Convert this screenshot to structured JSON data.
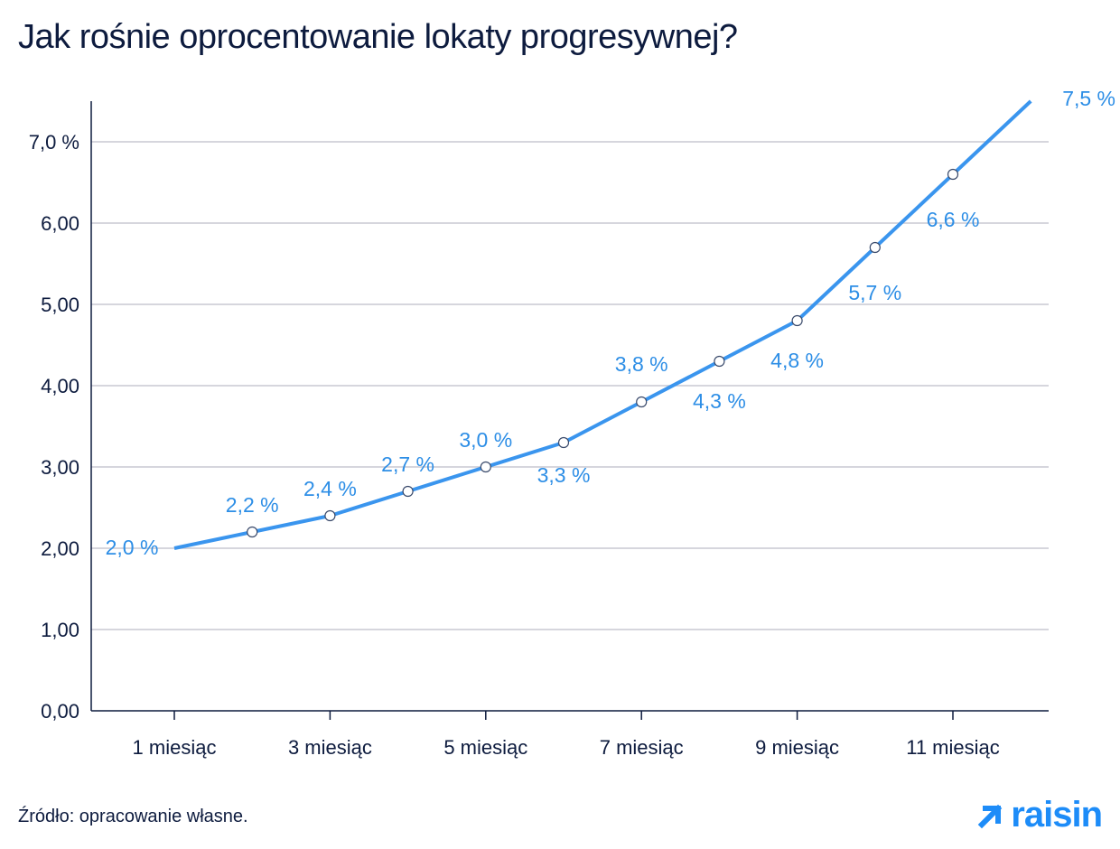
{
  "title": "Jak rośnie oprocentowanie lokaty progresywnej?",
  "source": "Źródło: opracowanie własne.",
  "brand": {
    "name": "raisin",
    "icon": "arrow-up-right-icon",
    "color": "#1d8cf8"
  },
  "colors": {
    "line": "#3a95ee",
    "label": "#2d8ee6",
    "grid": "#c8c8d2",
    "axis": "#0d1b3e"
  },
  "chart_data": {
    "type": "line",
    "x": [
      1,
      2,
      3,
      4,
      5,
      6,
      7,
      8,
      9,
      10,
      11,
      12
    ],
    "y": [
      2.0,
      2.2,
      2.4,
      2.7,
      3.0,
      3.3,
      3.8,
      4.3,
      4.8,
      5.7,
      6.6,
      7.5
    ],
    "data_labels": [
      "2,0 %",
      "2,2 %",
      "2,4 %",
      "2,7 %",
      "3,0 %",
      "3,3 %",
      "3,8 %",
      "4,3 %",
      "4,8 %",
      "5,7 %",
      "6,6 %",
      "7,5 %"
    ],
    "xticks": [
      1,
      3,
      5,
      7,
      9,
      11
    ],
    "xtick_labels": [
      "1 miesiąc",
      "3 miesiąc",
      "5 miesiąc",
      "7 miesiąc",
      "9 miesiąc",
      "11 miesiąc"
    ],
    "yticks": [
      0,
      1,
      2,
      3,
      4,
      5,
      6,
      7
    ],
    "ytick_labels": [
      "0,00",
      "1,00",
      "2,00",
      "3,00",
      "4,00",
      "5,00",
      "6,00",
      "7,0 %"
    ],
    "ylim": [
      0,
      7.5
    ],
    "grid": true,
    "markers": "open-circle"
  }
}
